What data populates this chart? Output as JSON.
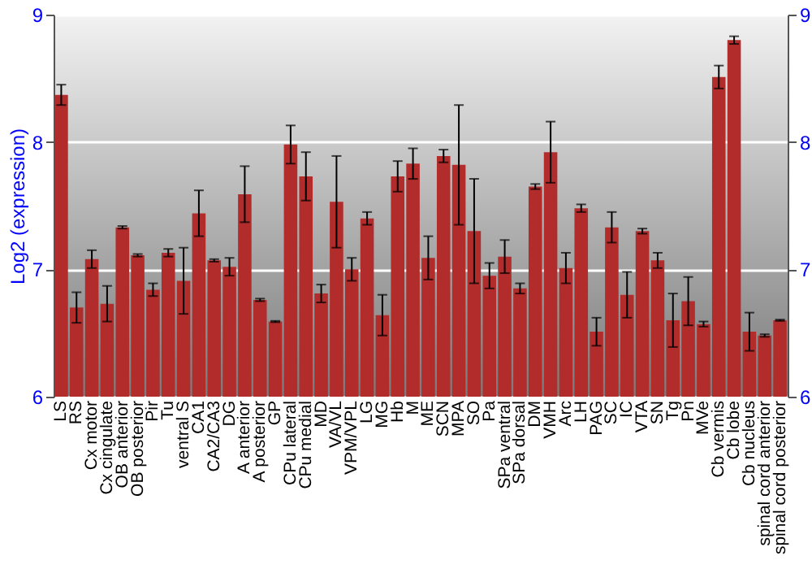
{
  "chart_data": {
    "type": "bar",
    "ylabel": "Log2 (expression)",
    "categories": [
      "LS",
      "RS",
      "Cx motor",
      "Cx cingulate",
      "OB anterior",
      "OB posterior",
      "Pir",
      "Tu",
      "ventral S",
      "CA1",
      "CA2/CA3",
      "DG",
      "A anterior",
      "A posterior",
      "GP",
      "CPu lateral",
      "CPu medial",
      "MD",
      "VA/VL",
      "VPM/VPL",
      "LG",
      "MG",
      "Hb",
      "M",
      "ME",
      "SCN",
      "MPA",
      "SO",
      "Pa",
      "SPa ventral",
      "SPa dorsal",
      "DM",
      "VMH",
      "Arc",
      "LH",
      "PAG",
      "SC",
      "IC",
      "VTA",
      "SN",
      "Tg",
      "Pn",
      "MVe",
      "Cb vermis",
      "Cb lobe",
      "Cb nucleus",
      "spinal cord anterior",
      "spinal cord posterior"
    ],
    "values": [
      8.37,
      6.7,
      7.08,
      6.73,
      7.33,
      7.11,
      6.84,
      7.13,
      6.91,
      7.44,
      7.07,
      7.02,
      7.59,
      6.76,
      6.59,
      7.98,
      7.73,
      6.81,
      7.53,
      7.0,
      7.4,
      6.64,
      7.73,
      7.83,
      7.09,
      7.89,
      7.82,
      7.3,
      6.95,
      7.1,
      6.85,
      7.65,
      7.92,
      7.01,
      7.48,
      6.51,
      7.33,
      6.8,
      7.3,
      7.07,
      6.6,
      6.75,
      6.57,
      8.51,
      8.8,
      6.51,
      6.48,
      6.6
    ],
    "errors": [
      0.08,
      0.12,
      0.07,
      0.14,
      0.01,
      0.01,
      0.05,
      0.03,
      0.26,
      0.18,
      0.01,
      0.07,
      0.22,
      0.01,
      0.005,
      0.15,
      0.19,
      0.07,
      0.36,
      0.09,
      0.05,
      0.16,
      0.12,
      0.12,
      0.17,
      0.05,
      0.47,
      0.41,
      0.1,
      0.13,
      0.04,
      0.02,
      0.24,
      0.12,
      0.03,
      0.11,
      0.12,
      0.18,
      0.02,
      0.06,
      0.21,
      0.19,
      0.02,
      0.09,
      0.03,
      0.15,
      0.01,
      0.005
    ],
    "color": "#b22c2c",
    "ylim": [
      6,
      9
    ],
    "yticks": [
      6,
      7,
      8,
      9
    ],
    "y2lim": [
      6,
      9
    ],
    "y2ticks": [
      6,
      7,
      8,
      9
    ],
    "grid": "y"
  }
}
